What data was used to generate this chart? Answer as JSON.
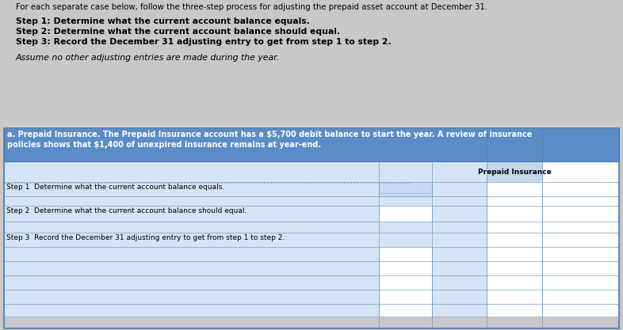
{
  "title_line": "For each separate case below, follow the three-step process for adjusting the prepaid asset account at December 31.",
  "step1_text": "Step 1: Determine what the current account balance equals.",
  "step2_text": "Step 2: Determine what the current account balance should equal.",
  "step3_text": "Step 3: Record the December 31 adjusting entry to get from step 1 to step 2.",
  "assume_text": "Assume no other adjusting entries are made during the year.",
  "section_a_header_line1": "a. Prepaid Insurance. The Prepaid Insurance account has a $5,700 debit balance to start the year. A review of insurance",
  "section_a_header_line2": "policies shows that $1,400 of unexpired insurance remains at year-end.",
  "table_step1": "Step 1  Determine what the current account balance equals.",
  "table_step2": "Step 2  Determine what the current account balance should equal.",
  "table_step3": "Step 3  Record the December 31 adjusting entry to get from step 1 to step 2.",
  "col_header": "Prepaid Insurance",
  "bg_color": "#c8c8c8",
  "header_bg": "#5b8cc8",
  "white": "#ffffff",
  "cell_light_blue": "#d4e3f5",
  "cell_input_blue": "#c5d9f0",
  "prepaid_header_bg": "#c5d6eb",
  "border_color": "#7aa0c4",
  "text_dark": "#1a1a1a"
}
